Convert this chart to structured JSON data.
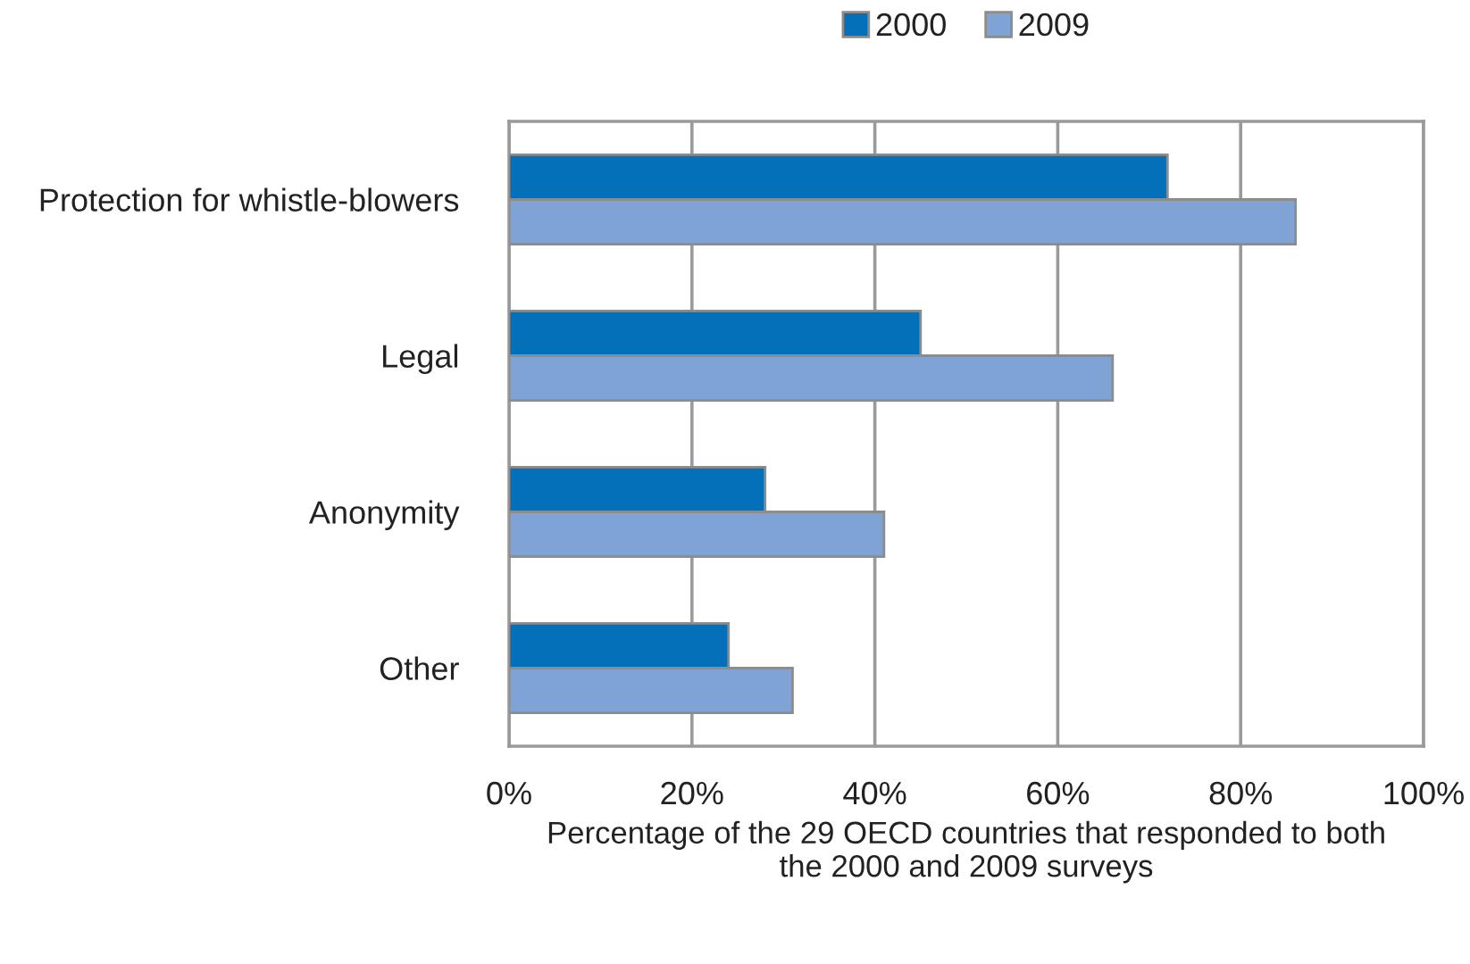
{
  "chart_data": {
    "type": "bar",
    "orientation": "horizontal",
    "categories": [
      "Protection for whistle-blowers",
      "Legal",
      "Anonymity",
      "Other"
    ],
    "series": [
      {
        "name": "2000",
        "color": "#0570ba",
        "values": [
          72,
          45,
          28,
          24
        ]
      },
      {
        "name": "2009",
        "color": "#7fa3d5",
        "values": [
          86,
          66,
          41,
          31
        ]
      }
    ],
    "xlabel": "Percentage of the 29 OECD countries that responded to both\nthe 2000 and 2009 surveys",
    "xlim": [
      0,
      100
    ],
    "xticks": [
      {
        "value": 0,
        "label": "0%"
      },
      {
        "value": 20,
        "label": "20%"
      },
      {
        "value": 40,
        "label": "40%"
      },
      {
        "value": 60,
        "label": "60%"
      },
      {
        "value": 80,
        "label": "80%"
      },
      {
        "value": 100,
        "label": "100%"
      }
    ],
    "grid": "x",
    "legend": "top"
  }
}
